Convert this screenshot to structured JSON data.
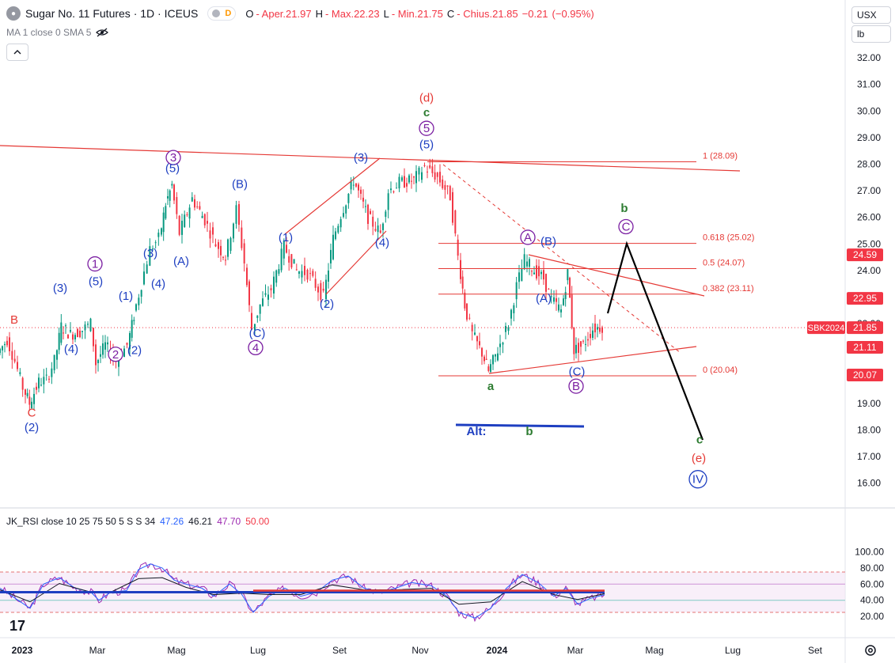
{
  "header": {
    "title": "Sugar No. 11 Futures · 1D · ICEUS",
    "interval_badge": "D",
    "ohlc": [
      {
        "label": "O",
        "value": "- Aper.21.97"
      },
      {
        "label": "H",
        "value": "- Max.22.23"
      },
      {
        "label": "L",
        "value": "- Min.21.75"
      },
      {
        "label": "C",
        "value": "- Chius.21.85"
      },
      {
        "label": "",
        "value": "−0.21"
      },
      {
        "label": "",
        "value": "(−0.95%)"
      }
    ]
  },
  "ma_legend": "MA 1 close 0 SMA 5",
  "right_controls": {
    "currency": "USX",
    "unit": "lb"
  },
  "rsi_legend": {
    "name": "JK_RSI close 10 25 75 50 5 S S 34",
    "values": [
      "47.26",
      "46.21",
      "47.70",
      "50.00"
    ],
    "value_colors": [
      "#2962ff",
      "#131722",
      "#9c27b0",
      "#f23645"
    ]
  },
  "colors": {
    "up": "#089981",
    "down": "#f23645",
    "blue": "#1e3fc1",
    "purple": "#7b1fa2",
    "red": "#e53935",
    "green": "#2e7d32",
    "fib": "#e53935"
  },
  "chart_data": [
    {
      "type": "candlestick",
      "symbol": "Sugar No. 11 Futures",
      "ylim": [
        15.0,
        33.0
      ],
      "y_ticks": [
        16.0,
        17.0,
        18.0,
        19.0,
        20.0,
        21.0,
        22.0,
        23.0,
        24.0,
        25.0,
        26.0,
        27.0,
        28.0,
        29.0,
        30.0,
        31.0,
        32.0
      ],
      "x_tick_labels": [
        "2023",
        "Mar",
        "Mag",
        "Lug",
        "Set",
        "Nov",
        "2024",
        "Mar",
        "Mag",
        "Lug",
        "Set"
      ],
      "price_tags": [
        {
          "label": "24.59",
          "value": 24.59,
          "color": "#f23645"
        },
        {
          "label": "22.95",
          "value": 22.95,
          "color": "#f23645"
        },
        {
          "label": "21.85",
          "value": 21.85,
          "color": "#f23645",
          "symbol_label": "SBK2024"
        },
        {
          "label": "21.11",
          "value": 21.11,
          "color": "#f23645"
        },
        {
          "label": "20.07",
          "value": 20.07,
          "color": "#f23645"
        }
      ],
      "last_price": 21.85,
      "fib_levels": [
        {
          "label": "1 (28.09)",
          "value": 28.09
        },
        {
          "label": "0.618 (25.02)",
          "value": 25.02
        },
        {
          "label": "0.5 (24.07)",
          "value": 24.07
        },
        {
          "label": "0.382 (23.11)",
          "value": 23.11
        },
        {
          "label": "0 (20.04)",
          "value": 20.04
        }
      ],
      "price_path": [
        [
          0,
          20.9
        ],
        [
          12,
          21.4
        ],
        [
          22,
          20.6
        ],
        [
          32,
          19.6
        ],
        [
          40,
          19.0
        ],
        [
          52,
          19.8
        ],
        [
          62,
          19.9
        ],
        [
          72,
          20.6
        ],
        [
          80,
          21.9
        ],
        [
          92,
          21.6
        ],
        [
          104,
          21.7
        ],
        [
          118,
          22.0
        ],
        [
          124,
          20.5
        ],
        [
          136,
          21.2
        ],
        [
          150,
          20.6
        ],
        [
          164,
          21.2
        ],
        [
          172,
          22.3
        ],
        [
          182,
          23.5
        ],
        [
          193,
          24.8
        ],
        [
          204,
          25.2
        ],
        [
          212,
          26.5
        ],
        [
          220,
          27.2
        ],
        [
          230,
          25.4
        ],
        [
          246,
          26.7
        ],
        [
          262,
          25.9
        ],
        [
          276,
          25.0
        ],
        [
          288,
          24.5
        ],
        [
          302,
          26.3
        ],
        [
          312,
          24.3
        ],
        [
          318,
          22.6
        ],
        [
          322,
          21.8
        ],
        [
          332,
          22.7
        ],
        [
          346,
          23.3
        ],
        [
          362,
          24.9
        ],
        [
          378,
          24.0
        ],
        [
          392,
          23.9
        ],
        [
          412,
          23.0
        ],
        [
          424,
          25.2
        ],
        [
          434,
          26.1
        ],
        [
          450,
          27.4
        ],
        [
          468,
          26.0
        ],
        [
          484,
          25.4
        ],
        [
          494,
          27.0
        ],
        [
          508,
          27.3
        ],
        [
          526,
          27.4
        ],
        [
          540,
          27.9
        ],
        [
          556,
          27.5
        ],
        [
          572,
          26.8
        ],
        [
          582,
          24.5
        ],
        [
          590,
          22.7
        ],
        [
          600,
          21.6
        ],
        [
          612,
          20.9
        ],
        [
          620,
          20.2
        ],
        [
          632,
          21.0
        ],
        [
          646,
          22.0
        ],
        [
          656,
          23.4
        ],
        [
          666,
          24.4
        ],
        [
          678,
          24.0
        ],
        [
          690,
          23.7
        ],
        [
          700,
          22.9
        ],
        [
          712,
          22.5
        ],
        [
          720,
          23.9
        ],
        [
          728,
          21.0
        ],
        [
          740,
          21.2
        ],
        [
          752,
          21.8
        ],
        [
          764,
          21.9
        ]
      ]
    },
    {
      "type": "line",
      "title": "JK_RSI close 10 25 75 50 5 S S 34",
      "ylim": [
        10,
        107
      ],
      "y_ticks": [
        20.0,
        40.0,
        60.0,
        80.0,
        100.0
      ],
      "levels": [
        75,
        60,
        40,
        25
      ],
      "rsi_path": [
        [
          0,
          55
        ],
        [
          20,
          42
        ],
        [
          38,
          30
        ],
        [
          55,
          60
        ],
        [
          75,
          68
        ],
        [
          95,
          55
        ],
        [
          115,
          50
        ],
        [
          125,
          40
        ],
        [
          140,
          50
        ],
        [
          160,
          52
        ],
        [
          175,
          78
        ],
        [
          190,
          85
        ],
        [
          205,
          80
        ],
        [
          220,
          65
        ],
        [
          235,
          60
        ],
        [
          255,
          55
        ],
        [
          270,
          45
        ],
        [
          290,
          60
        ],
        [
          305,
          48
        ],
        [
          320,
          25
        ],
        [
          340,
          45
        ],
        [
          360,
          55
        ],
        [
          380,
          45
        ],
        [
          400,
          50
        ],
        [
          420,
          65
        ],
        [
          440,
          70
        ],
        [
          460,
          55
        ],
        [
          480,
          50
        ],
        [
          500,
          55
        ],
        [
          520,
          62
        ],
        [
          545,
          58
        ],
        [
          565,
          45
        ],
        [
          580,
          25
        ],
        [
          600,
          18
        ],
        [
          620,
          30
        ],
        [
          640,
          55
        ],
        [
          660,
          72
        ],
        [
          680,
          62
        ],
        [
          700,
          45
        ],
        [
          715,
          55
        ],
        [
          730,
          35
        ],
        [
          745,
          42
        ],
        [
          764,
          47
        ]
      ]
    }
  ],
  "annotations": {
    "wave_labels": [
      {
        "text": "B",
        "price": 22.0,
        "day": 18,
        "color": "red"
      },
      {
        "text": "C",
        "price": 18.5,
        "day": 40,
        "color": "red"
      },
      {
        "text": "(2)",
        "price": 17.95,
        "day": 40,
        "color": "blue"
      },
      {
        "text": "(3)",
        "price": 23.2,
        "day": 76,
        "color": "blue"
      },
      {
        "text": "(4)",
        "price": 20.9,
        "day": 90,
        "color": "blue"
      },
      {
        "text": "1",
        "price": 24.1,
        "day": 120,
        "color": "purple",
        "circled": true
      },
      {
        "text": "(5)",
        "price": 23.45,
        "day": 121,
        "color": "blue"
      },
      {
        "text": "(1)",
        "price": 22.9,
        "day": 159,
        "color": "blue"
      },
      {
        "text": "2",
        "price": 20.7,
        "day": 146,
        "color": "purple",
        "circled": true
      },
      {
        "text": "(2)",
        "price": 20.85,
        "day": 170,
        "color": "blue"
      },
      {
        "text": "(3)",
        "price": 24.5,
        "day": 190,
        "color": "blue"
      },
      {
        "text": "(4)",
        "price": 23.35,
        "day": 200,
        "color": "blue"
      },
      {
        "text": "(A)",
        "price": 24.2,
        "day": 229,
        "color": "blue"
      },
      {
        "text": "3",
        "price": 28.1,
        "day": 219,
        "color": "purple",
        "circled": true
      },
      {
        "text": "(5)",
        "price": 27.7,
        "day": 218,
        "color": "blue"
      },
      {
        "text": "(B)",
        "price": 27.1,
        "day": 303,
        "color": "blue"
      },
      {
        "text": "(C)",
        "price": 21.5,
        "day": 325,
        "color": "blue"
      },
      {
        "text": "4",
        "price": 20.95,
        "day": 323,
        "color": "purple",
        "circled": true
      },
      {
        "text": "(1)",
        "price": 25.1,
        "day": 361,
        "color": "blue"
      },
      {
        "text": "(2)",
        "price": 22.6,
        "day": 413,
        "color": "blue"
      },
      {
        "text": "(3)",
        "price": 28.1,
        "day": 456,
        "color": "blue"
      },
      {
        "text": "(4)",
        "price": 24.9,
        "day": 483,
        "color": "blue"
      },
      {
        "text": "(d)",
        "price": 30.35,
        "day": 539,
        "color": "red"
      },
      {
        "text": "c",
        "price": 29.8,
        "day": 539,
        "color": "green"
      },
      {
        "text": "5",
        "price": 29.2,
        "day": 539,
        "color": "purple",
        "circled": true
      },
      {
        "text": "(5)",
        "price": 28.6,
        "day": 539,
        "color": "blue"
      },
      {
        "text": "a",
        "price": 19.5,
        "day": 620,
        "color": "green"
      },
      {
        "text": "A",
        "price": 25.1,
        "day": 667,
        "color": "purple",
        "circled": true
      },
      {
        "text": "(B)",
        "price": 24.95,
        "day": 693,
        "color": "blue"
      },
      {
        "text": "(A)",
        "price": 22.8,
        "day": 687,
        "color": "blue"
      },
      {
        "text": "(C)",
        "price": 20.05,
        "day": 729,
        "color": "blue"
      },
      {
        "text": "B",
        "price": 19.5,
        "day": 728,
        "color": "purple",
        "circled": true
      },
      {
        "text": "b",
        "price": 26.2,
        "day": 789,
        "color": "green"
      },
      {
        "text": "C",
        "price": 25.5,
        "day": 791,
        "color": "purple",
        "circled": true
      },
      {
        "text": "c",
        "price": 17.5,
        "day": 884,
        "color": "green"
      },
      {
        "text": "(e)",
        "price": 16.8,
        "day": 883,
        "color": "red"
      },
      {
        "text": "IV",
        "price": 16.0,
        "day": 882,
        "color": "blue",
        "circled": true
      },
      {
        "text": "Alt:",
        "price": 17.8,
        "day": 602,
        "color": "blue"
      },
      {
        "text": "b",
        "price": 17.8,
        "day": 669,
        "color": "green"
      }
    ]
  }
}
